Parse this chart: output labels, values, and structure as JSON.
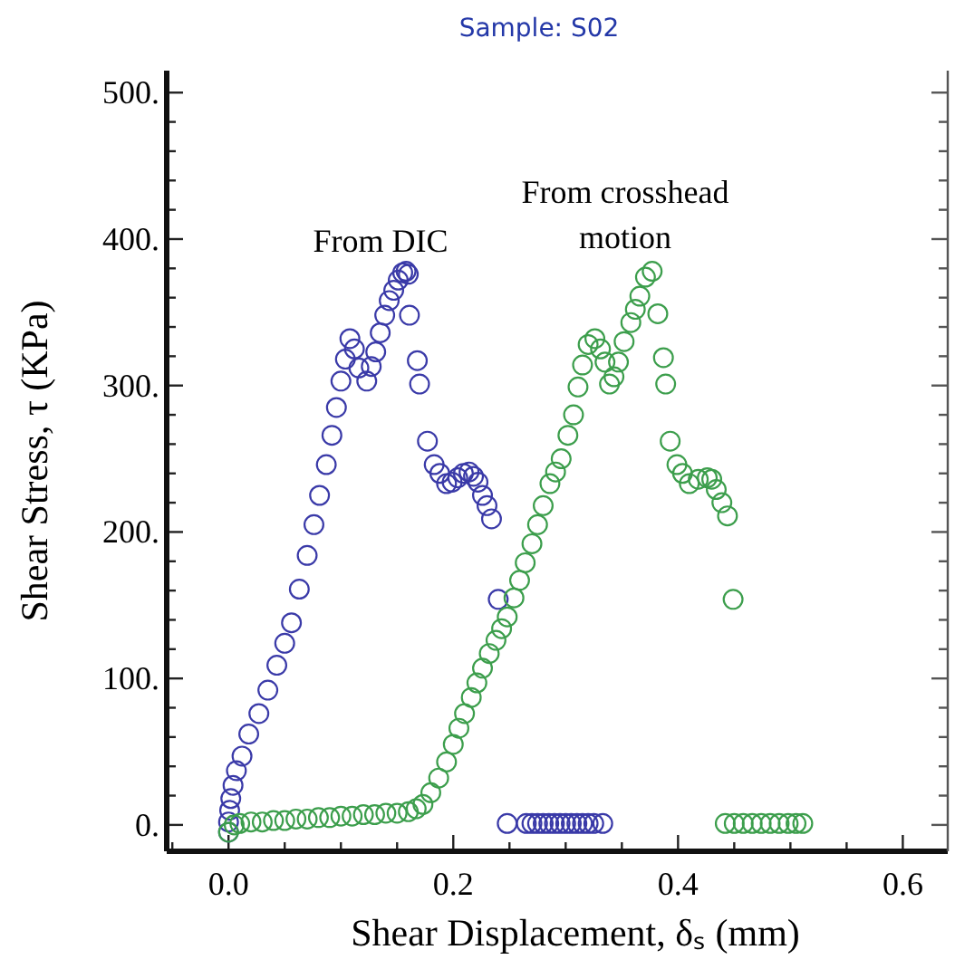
{
  "chart_data": {
    "type": "scatter",
    "title": "Sample: S02",
    "xlabel": "Shear Displacement, δₛ (mm)",
    "ylabel": "Shear Stress, τ (KPa)",
    "xlim": [
      -0.055,
      0.64
    ],
    "ylim": [
      -18,
      515
    ],
    "xticks": [
      {
        "value": -0.05,
        "label": null
      },
      {
        "value": 0,
        "label": "0.0"
      },
      {
        "value": 0.05,
        "label": null
      },
      {
        "value": 0.1,
        "label": null
      },
      {
        "value": 0.15,
        "label": null
      },
      0.2,
      {
        "value": 0.25,
        "label": null
      },
      {
        "value": 0.3,
        "label": null
      },
      {
        "value": 0.35,
        "label": null
      },
      0.4,
      {
        "value": 0.45,
        "label": null
      },
      {
        "value": 0.5,
        "label": null
      },
      {
        "value": 0.55,
        "label": null
      },
      0.6
    ],
    "yticks": [
      {
        "value": 0,
        "label": "0."
      },
      {
        "value": 20,
        "label": null
      },
      {
        "value": 40,
        "label": null
      },
      {
        "value": 60,
        "label": null
      },
      {
        "value": 80,
        "label": null
      },
      {
        "value": 100,
        "label": "100."
      },
      {
        "value": 120,
        "label": null
      },
      {
        "value": 140,
        "label": null
      },
      {
        "value": 160,
        "label": null
      },
      {
        "value": 180,
        "label": null
      },
      {
        "value": 200,
        "label": "200."
      },
      {
        "value": 220,
        "label": null
      },
      {
        "value": 240,
        "label": null
      },
      {
        "value": 260,
        "label": null
      },
      {
        "value": 280,
        "label": null
      },
      {
        "value": 300,
        "label": "300."
      },
      {
        "value": 320,
        "label": null
      },
      {
        "value": 340,
        "label": null
      },
      {
        "value": 360,
        "label": null
      },
      {
        "value": 380,
        "label": null
      },
      {
        "value": 400,
        "label": "400."
      },
      {
        "value": 420,
        "label": null
      },
      {
        "value": 440,
        "label": null
      },
      {
        "value": 460,
        "label": null
      },
      {
        "value": 480,
        "label": null
      },
      {
        "value": 500,
        "label": "500."
      }
    ],
    "marker": "circle",
    "series": [
      {
        "color": "#3a3aa8",
        "x": [
          0,
          0,
          0.001,
          0.002,
          0.004,
          0.007,
          0.012,
          0.018,
          0.027,
          0.035,
          0.043,
          0.05,
          0.056,
          0.063,
          0.07,
          0.076,
          0.081,
          0.087,
          0.092,
          0.096,
          0.1,
          0.104,
          0.108,
          0.112,
          0.116,
          0.123,
          0.127,
          0.131,
          0.135,
          0.139,
          0.143,
          0.147,
          0.151,
          0.155,
          0.158,
          0.16,
          0.161,
          0.168,
          0.17,
          0.177,
          0.183,
          0.188,
          0.194,
          0.199,
          0.204,
          0.209,
          0.214,
          0.218,
          0.222,
          0.226,
          0.23,
          0.234,
          0.24,
          0.248,
          0.265,
          0.27,
          0.275,
          0.28,
          0.285,
          0.29,
          0.295,
          0.3,
          0.305,
          0.31,
          0.315,
          0.32,
          0.325,
          0.333
        ],
        "values": [
          -5,
          2,
          10,
          18,
          27,
          37,
          47,
          62,
          76,
          92,
          109,
          124,
          138,
          161,
          184,
          205,
          225,
          246,
          266,
          285,
          303,
          318,
          332,
          325,
          312,
          303,
          313,
          323,
          336,
          348,
          358,
          365,
          372,
          377,
          378,
          376,
          348,
          317,
          301,
          262,
          246,
          240,
          233,
          234,
          237,
          240,
          241,
          238,
          234,
          225,
          218,
          209,
          154,
          1,
          1,
          1,
          1,
          1,
          1,
          1,
          1,
          1,
          1,
          1,
          1,
          1,
          1,
          1
        ]
      },
      {
        "color": "#3c9e4c",
        "x": [
          0,
          0.005,
          0.01,
          0.02,
          0.03,
          0.04,
          0.05,
          0.06,
          0.07,
          0.08,
          0.09,
          0.1,
          0.11,
          0.12,
          0.13,
          0.14,
          0.15,
          0.16,
          0.167,
          0.173,
          0.18,
          0.187,
          0.194,
          0.2,
          0.205,
          0.21,
          0.216,
          0.221,
          0.226,
          0.232,
          0.238,
          0.243,
          0.248,
          0.254,
          0.259,
          0.264,
          0.27,
          0.275,
          0.28,
          0.286,
          0.291,
          0.296,
          0.302,
          0.307,
          0.311,
          0.315,
          0.32,
          0.326,
          0.331,
          0.335,
          0.339,
          0.343,
          0.347,
          0.352,
          0.358,
          0.362,
          0.366,
          0.371,
          0.377,
          0.382,
          0.387,
          0.389,
          0.393,
          0.399,
          0.404,
          0.41,
          0.418,
          0.426,
          0.43,
          0.434,
          0.439,
          0.444,
          0.449,
          0.442,
          0.45,
          0.458,
          0.466,
          0.474,
          0.482,
          0.49,
          0.498,
          0.505,
          0.511
        ],
        "values": [
          -5,
          0,
          1,
          2,
          2,
          3,
          3,
          4,
          4,
          5,
          5,
          6,
          6,
          7,
          7,
          8,
          8,
          9,
          11,
          14,
          22,
          32,
          43,
          55,
          66,
          76,
          87,
          97,
          107,
          117,
          126,
          134,
          142,
          155,
          167,
          179,
          192,
          205,
          218,
          233,
          241,
          250,
          266,
          280,
          299,
          314,
          328,
          332,
          325,
          316,
          301,
          306,
          316,
          330,
          343,
          352,
          361,
          374,
          378,
          349,
          319,
          301,
          262,
          246,
          240,
          233,
          236,
          237,
          236,
          229,
          220,
          211,
          154,
          1,
          1,
          1,
          1,
          1,
          1,
          1,
          1,
          1,
          1
        ]
      }
    ],
    "annotations": [
      "From DIC",
      "From crosshead\nmotion"
    ]
  }
}
